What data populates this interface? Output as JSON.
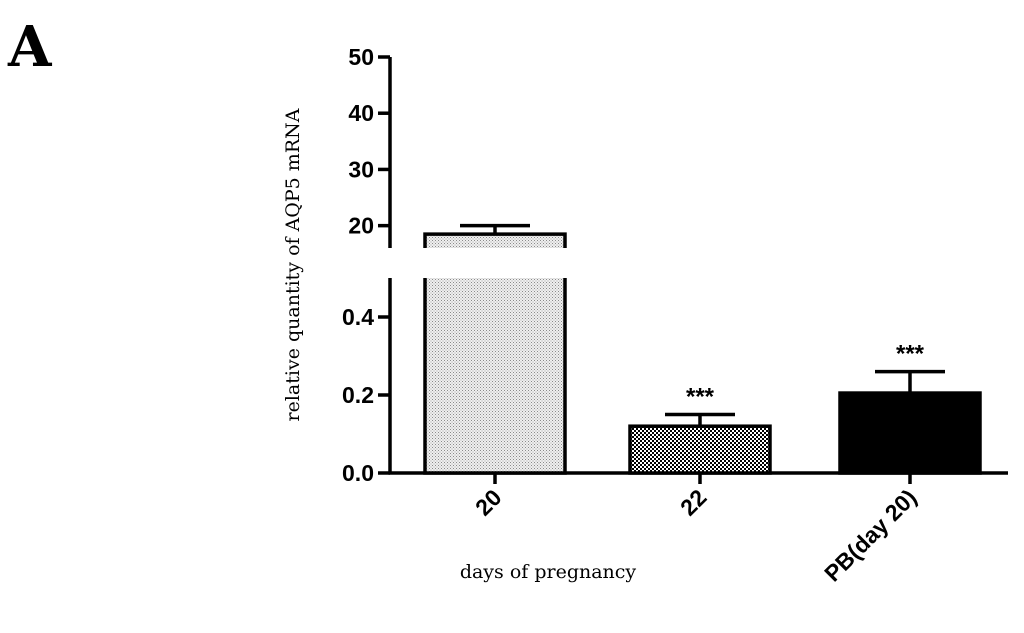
{
  "panel_label": "A",
  "chart_data": {
    "type": "bar",
    "title": "",
    "xlabel": "days of pregnancy",
    "ylabel": "relative quantity of AQP5 mRNA",
    "categories": [
      "20",
      "22",
      "PB(day 20)"
    ],
    "values": [
      18.5,
      0.12,
      0.205
    ],
    "errors": [
      1.5,
      0.03,
      0.055
    ],
    "annotations": [
      "",
      "***",
      "***"
    ],
    "bar_fills": [
      "light-dotted",
      "checkered",
      "solid-black"
    ],
    "y_axis_break": true,
    "lower_segment": {
      "ylim": [
        0,
        0.5
      ],
      "ticks": [
        "0.0",
        "0.2",
        "0.4"
      ],
      "tick_values": [
        0,
        0.2,
        0.4
      ]
    },
    "upper_segment": {
      "ylim": [
        13,
        50
      ],
      "ticks": [
        "20",
        "30",
        "40",
        "50"
      ],
      "tick_values": [
        20,
        30,
        40,
        50
      ]
    },
    "grid": false,
    "legend": "none"
  }
}
